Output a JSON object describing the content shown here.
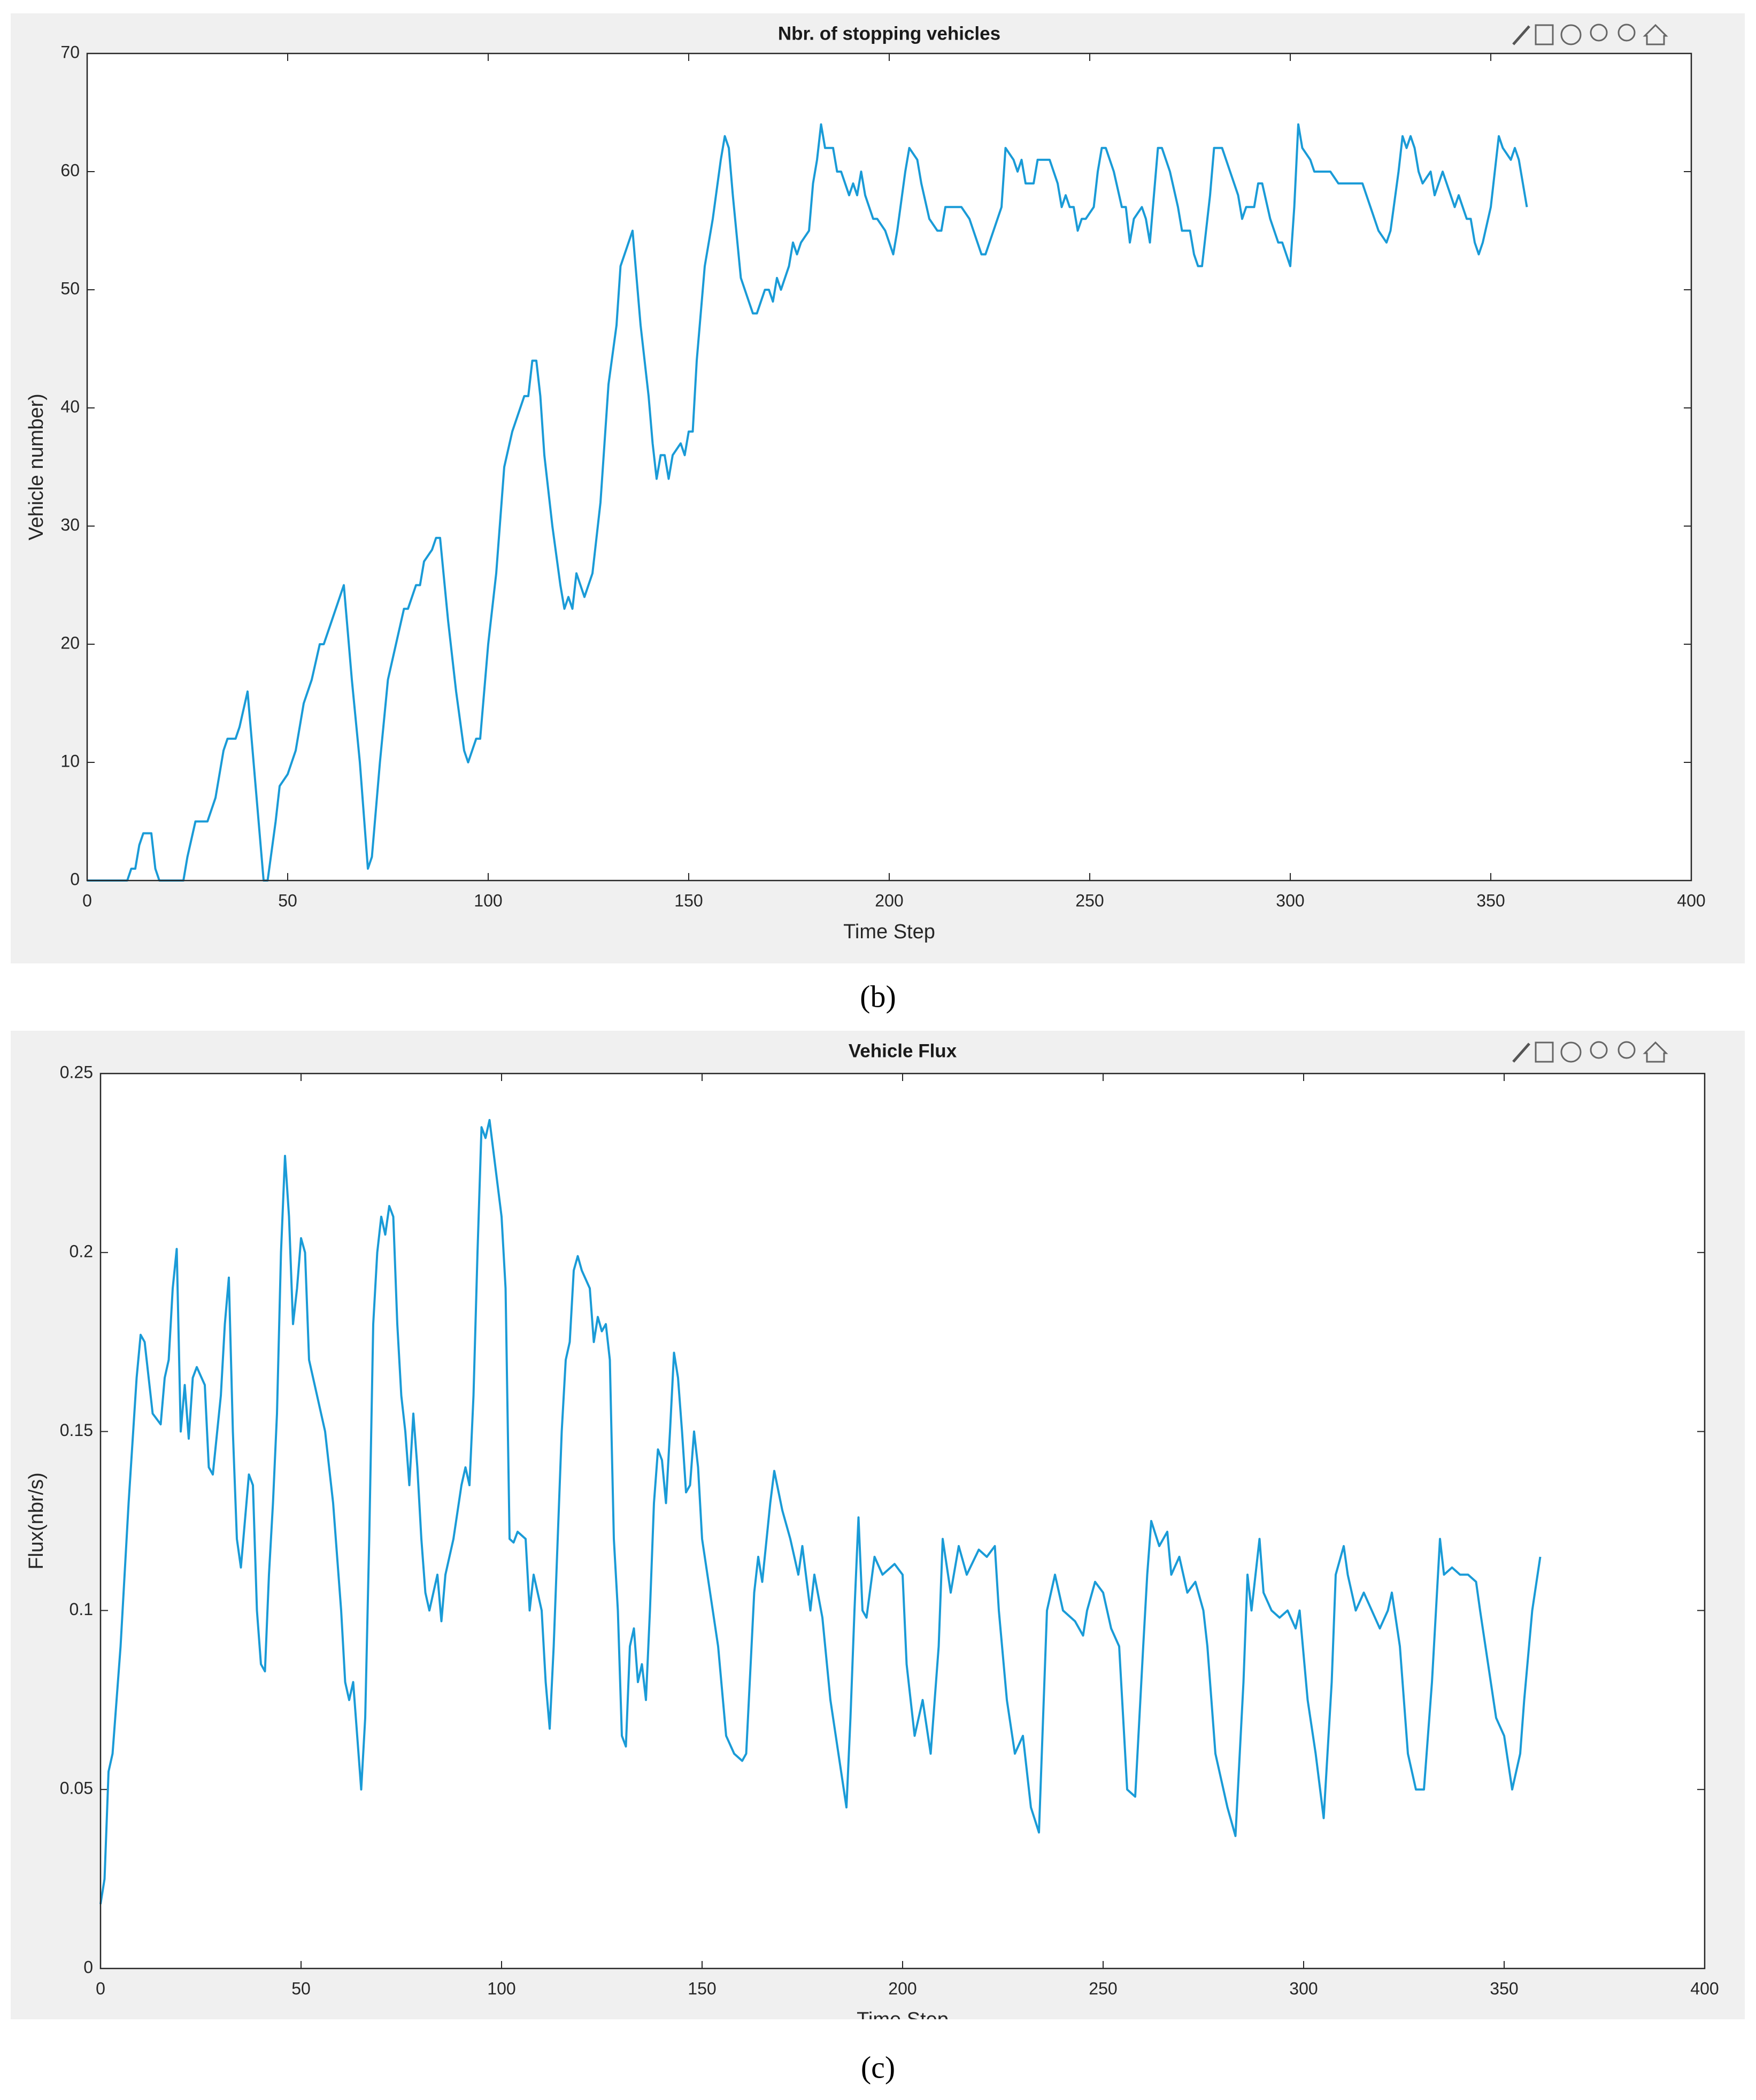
{
  "chart_data": [
    {
      "type": "line",
      "title": "Nbr. of stopping vehicles",
      "x_label": "Time Step",
      "y_label": "Vehicle number)",
      "caption": "(b)",
      "xlim": [
        0,
        400
      ],
      "xticks": [
        0,
        50,
        100,
        150,
        200,
        250,
        300,
        350,
        400
      ],
      "ylim": [
        0,
        70
      ],
      "yticks": [
        0,
        10,
        20,
        30,
        40,
        50,
        60,
        70
      ],
      "x": [
        0,
        10,
        11,
        12,
        13,
        14,
        16,
        17,
        18,
        24,
        25,
        27,
        30,
        32,
        34,
        35,
        37,
        38,
        40,
        42,
        44,
        45,
        47,
        48,
        50,
        52,
        54,
        56,
        58,
        59,
        61,
        63,
        64,
        66,
        68,
        70,
        71,
        73,
        75,
        77,
        79,
        80,
        82,
        83,
        84,
        86,
        87,
        88,
        90,
        92,
        94,
        95,
        97,
        98,
        100,
        102,
        104,
        106,
        108,
        109,
        110,
        111,
        112,
        113,
        114,
        116,
        118,
        119,
        120,
        121,
        122,
        124,
        126,
        128,
        130,
        132,
        133,
        135,
        136,
        138,
        140,
        141,
        142,
        143,
        144,
        145,
        146,
        148,
        149,
        150,
        151,
        152,
        154,
        156,
        158,
        159,
        160,
        161,
        163,
        165,
        166,
        167,
        169,
        170,
        171,
        172,
        173,
        175,
        176,
        177,
        178,
        180,
        181,
        182,
        183,
        184,
        186,
        187,
        188,
        190,
        191,
        192,
        193,
        194,
        196,
        197,
        199,
        200,
        201,
        202,
        204,
        205,
        207,
        208,
        210,
        212,
        213,
        214,
        217,
        218,
        220,
        221,
        223,
        224,
        226,
        228,
        229,
        231,
        232,
        233,
        234,
        236,
        237,
        240,
        242,
        243,
        244,
        245,
        246,
        247,
        248,
        249,
        251,
        252,
        253,
        254,
        255,
        256,
        258,
        259,
        260,
        261,
        263,
        264,
        265,
        267,
        268,
        269,
        270,
        272,
        273,
        275,
        276,
        277,
        278,
        280,
        281,
        283,
        285,
        287,
        288,
        289,
        291,
        292,
        293,
        295,
        296,
        297,
        298,
        300,
        301,
        302,
        303,
        305,
        306,
        307,
        310,
        312,
        318,
        320,
        322,
        324,
        325,
        327,
        328,
        329,
        330,
        331,
        332,
        333,
        335,
        336,
        338,
        340,
        341,
        342,
        344,
        345,
        346,
        347,
        348,
        350,
        352,
        353,
        355,
        356,
        357,
        358,
        359
      ],
      "series": [
        {
          "color": "#1a9bd7",
          "values": [
            0,
            0,
            1,
            1,
            3,
            4,
            4,
            1,
            0,
            0,
            2,
            5,
            5,
            7,
            11,
            12,
            12,
            13,
            16,
            8,
            0,
            0,
            5,
            8,
            9,
            11,
            15,
            17,
            20,
            20,
            22,
            24,
            25,
            17,
            10,
            1,
            2,
            10,
            17,
            20,
            23,
            23,
            25,
            25,
            27,
            28,
            29,
            29,
            22,
            16,
            11,
            10,
            12,
            12,
            20,
            26,
            35,
            38,
            40,
            41,
            41,
            44,
            44,
            41,
            36,
            30,
            25,
            23,
            24,
            23,
            26,
            24,
            26,
            32,
            42,
            47,
            52,
            54,
            55,
            47,
            41,
            37,
            34,
            36,
            36,
            34,
            36,
            37,
            36,
            38,
            38,
            44,
            52,
            56,
            61,
            63,
            62,
            58,
            51,
            49,
            48,
            48,
            50,
            50,
            49,
            51,
            50,
            52,
            54,
            53,
            54,
            55,
            59,
            61,
            64,
            62,
            62,
            60,
            60,
            58,
            59,
            58,
            60,
            58,
            56,
            56,
            55,
            54,
            53,
            55,
            60,
            62,
            61,
            59,
            56,
            55,
            55,
            57,
            57,
            57,
            56,
            55,
            53,
            53,
            55,
            57,
            62,
            61,
            60,
            61,
            59,
            59,
            61,
            61,
            59,
            57,
            58,
            57,
            57,
            55,
            56,
            56,
            57,
            60,
            62,
            62,
            61,
            60,
            57,
            57,
            54,
            56,
            57,
            56,
            54,
            62,
            62,
            61,
            60,
            57,
            55,
            55,
            53,
            52,
            52,
            58,
            62,
            62,
            60,
            58,
            56,
            57,
            57,
            59,
            59,
            56,
            55,
            54,
            54,
            52,
            57,
            64,
            62,
            61,
            60,
            60,
            60,
            59,
            59,
            57,
            55,
            54,
            55,
            60,
            63,
            62,
            63,
            62,
            60,
            59,
            60,
            58,
            60,
            58,
            57,
            58,
            56,
            56,
            54,
            53,
            54,
            57,
            63,
            62,
            61,
            62,
            61,
            59,
            57
          ]
        }
      ]
    },
    {
      "type": "line",
      "title": "Vehicle Flux",
      "x_label": "Time Step",
      "y_label": "Flux(nbr/s)",
      "caption": "(c)",
      "xlim": [
        0,
        400
      ],
      "xticks": [
        0,
        50,
        100,
        150,
        200,
        250,
        300,
        350,
        400
      ],
      "ylim": [
        0,
        0.25
      ],
      "yticks": [
        0,
        0.05,
        0.1,
        0.15,
        0.2,
        0.25
      ],
      "x": [
        0,
        1,
        2,
        3,
        5,
        7,
        9,
        10,
        11,
        13,
        15,
        16,
        17,
        18,
        19,
        20,
        21,
        22,
        23,
        24,
        26,
        27,
        28,
        30,
        31,
        32,
        33,
        34,
        35,
        36,
        37,
        38,
        39,
        40,
        41,
        42,
        43,
        44,
        45,
        46,
        47,
        48,
        49,
        50,
        51,
        52,
        53,
        54,
        56,
        58,
        60,
        61,
        62,
        63,
        64,
        65,
        66,
        67,
        68,
        69,
        70,
        71,
        72,
        73,
        74,
        75,
        76,
        77,
        78,
        79,
        80,
        81,
        82,
        84,
        85,
        86,
        88,
        90,
        91,
        92,
        93,
        94,
        95,
        96,
        97,
        98,
        100,
        101,
        102,
        103,
        104,
        106,
        107,
        108,
        110,
        111,
        112,
        113,
        114,
        115,
        116,
        117,
        118,
        119,
        120,
        122,
        123,
        124,
        125,
        126,
        127,
        128,
        129,
        130,
        131,
        132,
        133,
        134,
        135,
        136,
        137,
        138,
        139,
        140,
        141,
        142,
        143,
        144,
        145,
        146,
        147,
        148,
        149,
        150,
        152,
        154,
        156,
        158,
        160,
        161,
        163,
        164,
        165,
        167,
        168,
        170,
        172,
        174,
        175,
        177,
        178,
        180,
        182,
        184,
        186,
        187,
        188,
        189,
        190,
        191,
        193,
        195,
        198,
        200,
        201,
        203,
        205,
        207,
        209,
        210,
        212,
        214,
        216,
        219,
        221,
        223,
        224,
        226,
        228,
        230,
        232,
        234,
        236,
        238,
        240,
        243,
        245,
        246,
        248,
        250,
        252,
        254,
        256,
        258,
        260,
        261,
        262,
        264,
        266,
        267,
        269,
        271,
        273,
        275,
        276,
        278,
        281,
        283,
        285,
        286,
        287,
        289,
        290,
        292,
        294,
        296,
        298,
        299,
        301,
        303,
        305,
        307,
        308,
        310,
        311,
        313,
        315,
        317,
        319,
        321,
        322,
        324,
        326,
        328,
        330,
        332,
        334,
        335,
        337,
        339,
        341,
        343,
        344,
        346,
        348,
        350,
        352,
        354,
        355,
        357,
        359
      ],
      "series": [
        {
          "color": "#1a9bd7",
          "values": [
            0.018,
            0.025,
            0.055,
            0.06,
            0.09,
            0.13,
            0.165,
            0.177,
            0.175,
            0.155,
            0.152,
            0.165,
            0.17,
            0.19,
            0.201,
            0.15,
            0.163,
            0.148,
            0.165,
            0.168,
            0.163,
            0.14,
            0.138,
            0.16,
            0.18,
            0.193,
            0.15,
            0.12,
            0.112,
            0.125,
            0.138,
            0.135,
            0.1,
            0.085,
            0.083,
            0.11,
            0.13,
            0.155,
            0.2,
            0.227,
            0.21,
            0.18,
            0.19,
            0.204,
            0.2,
            0.17,
            0.165,
            0.16,
            0.15,
            0.13,
            0.1,
            0.08,
            0.075,
            0.08,
            0.065,
            0.05,
            0.07,
            0.12,
            0.18,
            0.2,
            0.21,
            0.205,
            0.213,
            0.21,
            0.18,
            0.16,
            0.15,
            0.135,
            0.155,
            0.14,
            0.12,
            0.105,
            0.1,
            0.11,
            0.097,
            0.11,
            0.12,
            0.135,
            0.14,
            0.135,
            0.16,
            0.2,
            0.235,
            0.232,
            0.237,
            0.228,
            0.21,
            0.19,
            0.12,
            0.119,
            0.122,
            0.12,
            0.1,
            0.11,
            0.1,
            0.08,
            0.067,
            0.09,
            0.12,
            0.15,
            0.17,
            0.175,
            0.195,
            0.199,
            0.195,
            0.19,
            0.175,
            0.182,
            0.178,
            0.18,
            0.17,
            0.12,
            0.1,
            0.065,
            0.062,
            0.09,
            0.095,
            0.08,
            0.085,
            0.075,
            0.1,
            0.13,
            0.145,
            0.142,
            0.13,
            0.15,
            0.172,
            0.165,
            0.15,
            0.133,
            0.135,
            0.15,
            0.14,
            0.12,
            0.105,
            0.09,
            0.065,
            0.06,
            0.058,
            0.06,
            0.105,
            0.115,
            0.108,
            0.13,
            0.139,
            0.128,
            0.12,
            0.11,
            0.118,
            0.1,
            0.11,
            0.098,
            0.075,
            0.06,
            0.045,
            0.07,
            0.1,
            0.126,
            0.1,
            0.098,
            0.115,
            0.11,
            0.113,
            0.11,
            0.085,
            0.065,
            0.075,
            0.06,
            0.09,
            0.12,
            0.105,
            0.118,
            0.11,
            0.117,
            0.115,
            0.118,
            0.1,
            0.075,
            0.06,
            0.065,
            0.045,
            0.038,
            0.1,
            0.11,
            0.1,
            0.097,
            0.093,
            0.1,
            0.108,
            0.105,
            0.095,
            0.09,
            0.05,
            0.048,
            0.09,
            0.11,
            0.125,
            0.118,
            0.122,
            0.11,
            0.115,
            0.105,
            0.108,
            0.1,
            0.09,
            0.06,
            0.045,
            0.037,
            0.08,
            0.11,
            0.1,
            0.12,
            0.105,
            0.1,
            0.098,
            0.1,
            0.095,
            0.1,
            0.075,
            0.06,
            0.042,
            0.08,
            0.11,
            0.118,
            0.11,
            0.1,
            0.105,
            0.1,
            0.095,
            0.1,
            0.105,
            0.09,
            0.06,
            0.05,
            0.05,
            0.08,
            0.12,
            0.11,
            0.112,
            0.11,
            0.11,
            0.108,
            0.1,
            0.085,
            0.07,
            0.065,
            0.05,
            0.06,
            0.075,
            0.1,
            0.115
          ]
        }
      ]
    }
  ]
}
